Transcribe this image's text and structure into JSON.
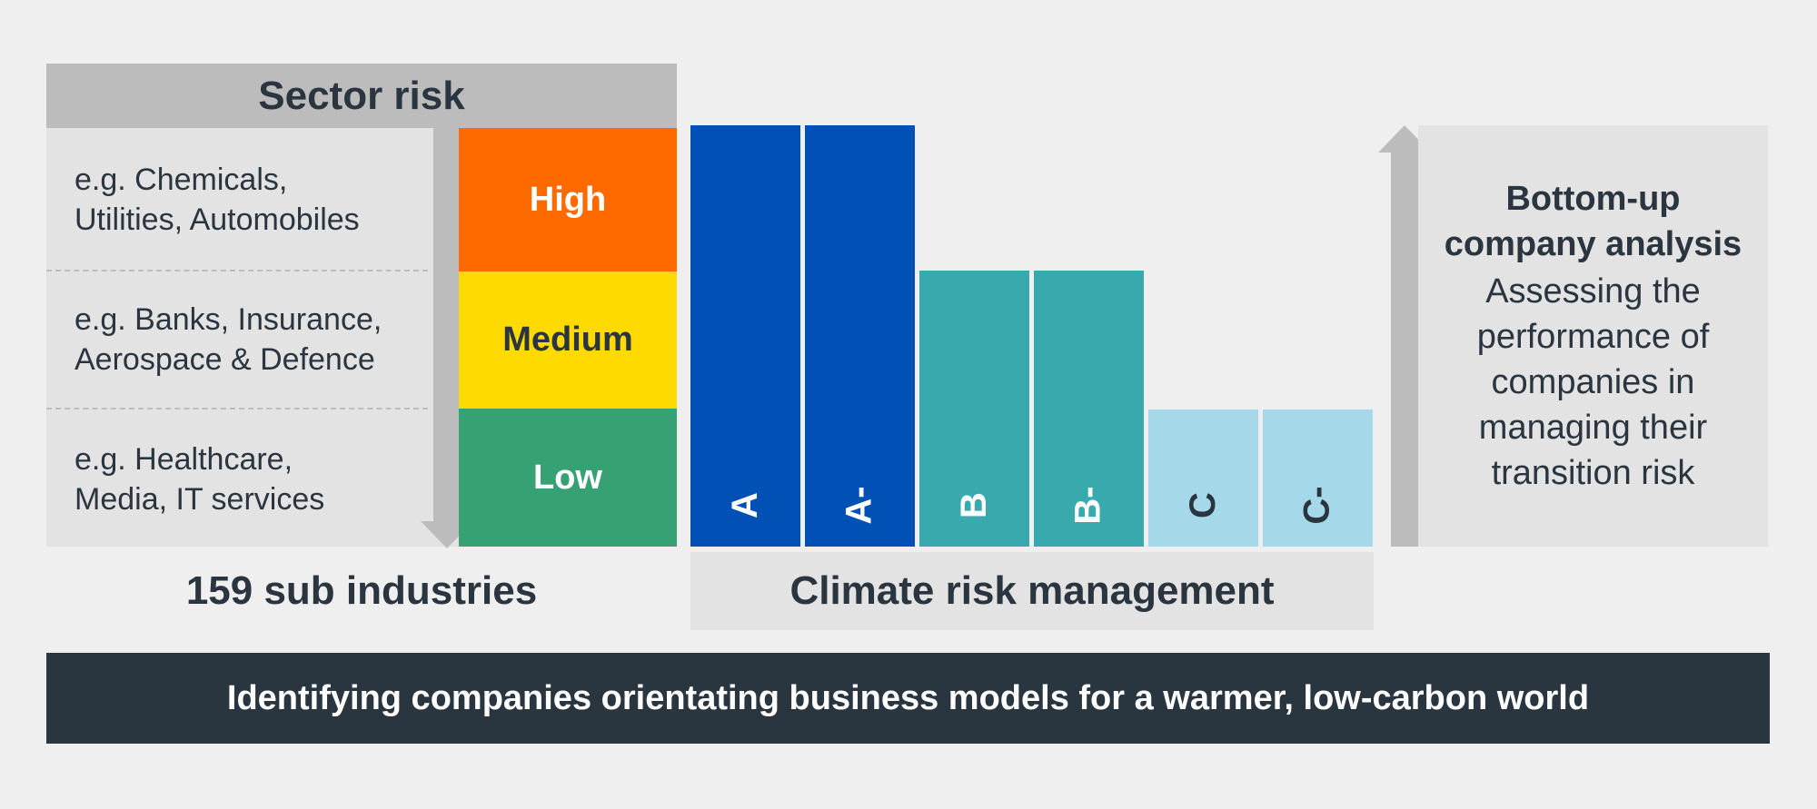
{
  "sector_risk": {
    "title": "Sector risk",
    "examples": [
      {
        "line1": "e.g. Chemicals,",
        "line2": "Utilities, Automobiles"
      },
      {
        "line1": "e.g. Banks, Insurance,",
        "line2": "Aerospace & Defence"
      },
      {
        "line1": "e.g. Healthcare,",
        "line2": "Media, IT services"
      }
    ],
    "levels": [
      {
        "label": "High",
        "color": "#ff6a00",
        "text_color": "#ffffff"
      },
      {
        "label": "Medium",
        "color": "#ffda00",
        "text_color": "#2a3540"
      },
      {
        "label": "Low",
        "color": "#36a173",
        "text_color": "#ffffff"
      }
    ],
    "footer": "159 sub industries"
  },
  "climate": {
    "grades": [
      {
        "label": "A",
        "tier": 3,
        "color": "#0050b5",
        "text_color": "#ffffff"
      },
      {
        "label": "A-",
        "tier": 3,
        "color": "#0050b5",
        "text_color": "#ffffff"
      },
      {
        "label": "B",
        "tier": 2,
        "color": "#38a9ad",
        "text_color": "#ffffff"
      },
      {
        "label": "B-",
        "tier": 2,
        "color": "#38a9ad",
        "text_color": "#ffffff"
      },
      {
        "label": "C",
        "tier": 1,
        "color": "#a5d8e8",
        "text_color": "#2a3540"
      },
      {
        "label": "C-",
        "tier": 1,
        "color": "#a5d8e8",
        "text_color": "#2a3540"
      }
    ],
    "label": "Climate risk management"
  },
  "bottom_up": {
    "title_line1": "Bottom-up",
    "title_line2": "company analysis",
    "body": [
      "Assessing the",
      "performance of",
      "companies in",
      "managing their",
      "transition risk"
    ]
  },
  "banner": "Identifying companies orientating business models for a warmer, low-carbon world"
}
